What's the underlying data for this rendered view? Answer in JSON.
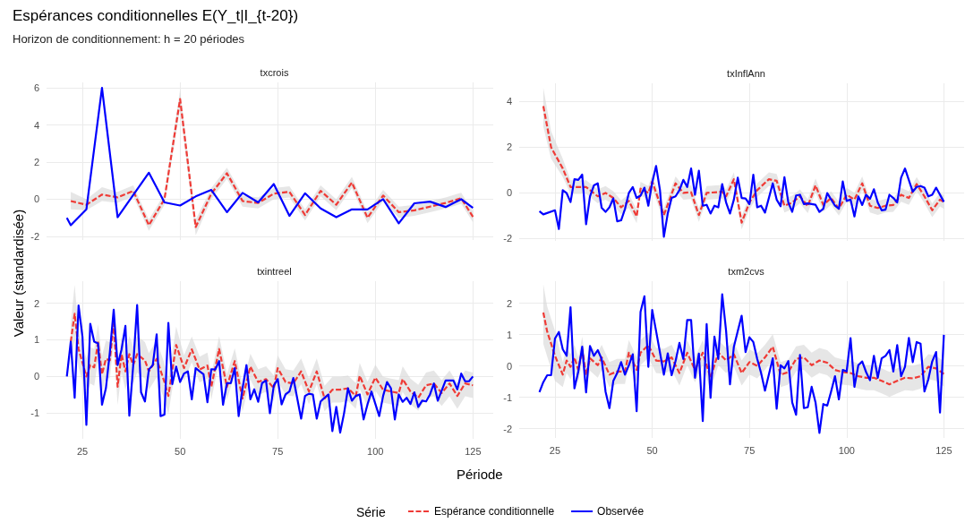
{
  "chart_data": [
    {
      "type": "line",
      "title": "txcrois",
      "annotations": [
        "Espérances conditionnelles E(Y_t|I_{t-20})",
        "Horizon de conditionnement: h = 20 périodes"
      ],
      "xlim": [
        15.8,
        130.2
      ],
      "xticks": [
        25,
        50,
        75,
        100,
        125
      ],
      "ylim": [
        -2.2,
        6.3
      ],
      "yticks": [
        -2,
        0,
        2,
        4,
        6
      ],
      "grid": true,
      "tick_labels": "y",
      "series": [
        {
          "color": "#ef3b36",
          "line_style": "dashed",
          "x": [
            22,
            26,
            30,
            34,
            38,
            42,
            46,
            50,
            54,
            58,
            62,
            66,
            70,
            74,
            78,
            82,
            86,
            90,
            94,
            98,
            102,
            106,
            110,
            114,
            118,
            122,
            125
          ],
          "values": [
            -0.1,
            -0.3,
            0.25,
            0.1,
            0.45,
            -1.4,
            0,
            5.4,
            -1.5,
            0.3,
            1.4,
            -0.1,
            -0.2,
            0.3,
            0.4,
            -0.85,
            0.45,
            -0.3,
            0.9,
            -1,
            0.2,
            -0.7,
            -0.6,
            -0.4,
            -0.2,
            0.05,
            -0.95
          ],
          "lower": [
            -0.55,
            -0.6,
            -0.1,
            -0.2,
            0.15,
            -1.7,
            -0.3,
            4.9,
            -1.95,
            0,
            1.1,
            -0.4,
            -0.5,
            0,
            0.1,
            -1.15,
            0.15,
            -0.6,
            0.6,
            -1.3,
            -0.1,
            -1,
            -0.9,
            -0.7,
            -0.5,
            -0.25,
            -1.25
          ],
          "upper": [
            0.4,
            0,
            0.65,
            0.4,
            0.75,
            -1.1,
            0.3,
            5.9,
            -1.1,
            0.6,
            1.7,
            0.2,
            0.1,
            0.6,
            0.7,
            -0.55,
            0.75,
            0,
            1.2,
            -0.7,
            0.5,
            -0.4,
            -0.3,
            -0.1,
            0.1,
            0.35,
            -0.65
          ]
        },
        {
          "color": "#0000ff",
          "line_style": "solid",
          "x": [
            21,
            22,
            26,
            30,
            34,
            42,
            46,
            50,
            54,
            58,
            62,
            66,
            70,
            74,
            78,
            82,
            86,
            90,
            94,
            98,
            102,
            106,
            110,
            114,
            118,
            122,
            125
          ],
          "values": [
            -1.0,
            -1.4,
            -0.55,
            6.0,
            -0.97,
            1.43,
            -0.17,
            -0.34,
            0.15,
            0.5,
            -0.7,
            0.34,
            -0.17,
            0.82,
            -0.9,
            0.32,
            -0.5,
            -0.97,
            -0.55,
            -0.55,
            0,
            -1.3,
            -0.22,
            -0.13,
            -0.42,
            0,
            -0.47
          ]
        }
      ]
    },
    {
      "type": "line",
      "title": "txInflAnn",
      "xlim": [
        15.8,
        130.2
      ],
      "xticks": [
        25,
        50,
        75,
        100,
        125
      ],
      "ylim": [
        -2.1,
        4.8
      ],
      "yticks": [
        -2,
        0,
        2,
        4
      ],
      "grid": true,
      "tick_labels": "y",
      "series": [
        {
          "color": "#ef3b36",
          "line_style": "dashed",
          "x": [
            22,
            24,
            27,
            29,
            33,
            36,
            38,
            40,
            42,
            44,
            46,
            47,
            49,
            50,
            53,
            56,
            58,
            60,
            62,
            64,
            68,
            69,
            71,
            73,
            75,
            77,
            80,
            82,
            84,
            86,
            88,
            90,
            92,
            94,
            96,
            98,
            100,
            102,
            104,
            106,
            108,
            110,
            112,
            114,
            116,
            118,
            120,
            122,
            124,
            125
          ],
          "values": [
            3.8,
            2.0,
            1.07,
            0.26,
            0.26,
            -0.15,
            0,
            -0.22,
            -0.63,
            -0.35,
            -1.03,
            0.19,
            0,
            0.5,
            -0.97,
            0.42,
            0,
            0.03,
            -0.97,
            0,
            0.05,
            -0.15,
            0.6,
            -1.3,
            -0.42,
            0.12,
            0.6,
            0.53,
            -0.56,
            -0.42,
            -0.15,
            -0.58,
            0.33,
            -0.53,
            -0.22,
            -0.69,
            -0.08,
            -0.29,
            0.42,
            -0.56,
            -0.66,
            -0.56,
            -0.53,
            -0.08,
            -0.22,
            0.39,
            -0.15,
            -0.76,
            -0.29,
            -0.4
          ],
          "lower": [
            2.9,
            1.5,
            0.7,
            -0.04,
            -0.04,
            -0.45,
            -0.3,
            -0.52,
            -0.93,
            -0.65,
            -1.33,
            -0.11,
            -0.3,
            0.2,
            -1.27,
            0.12,
            -0.3,
            -0.27,
            -1.27,
            -0.3,
            -0.25,
            -0.45,
            0.3,
            -1.6,
            -0.72,
            -0.18,
            0.3,
            0.23,
            -0.86,
            -0.72,
            -0.45,
            -0.88,
            0.03,
            -0.83,
            -0.52,
            -0.99,
            -0.38,
            -0.59,
            0.12,
            -0.86,
            -0.96,
            -0.86,
            -0.83,
            -0.38,
            -0.52,
            0.09,
            -0.45,
            -1.06,
            -0.59,
            -0.7
          ],
          "upper": [
            4.6,
            2.7,
            1.5,
            0.56,
            0.56,
            0.15,
            0.3,
            0.08,
            -0.33,
            -0.05,
            -0.73,
            0.49,
            0.3,
            0.8,
            -0.67,
            0.72,
            0.3,
            0.33,
            -0.67,
            0.3,
            0.35,
            0.15,
            0.9,
            -1.0,
            -0.12,
            0.42,
            0.9,
            0.83,
            -0.26,
            -0.12,
            0.15,
            -0.28,
            0.63,
            -0.23,
            0.08,
            -0.39,
            0.22,
            0.01,
            0.72,
            -0.26,
            -0.36,
            -0.26,
            -0.23,
            0.22,
            0.08,
            0.69,
            0.15,
            -0.46,
            0.01,
            -0.1
          ]
        },
        {
          "color": "#0000ff",
          "line_style": "solid",
          "x": [
            21,
            22,
            25,
            26,
            27,
            28,
            29,
            30,
            31,
            32,
            33,
            34,
            35,
            36,
            37,
            38,
            39,
            40,
            41,
            42,
            43,
            44,
            45,
            46,
            47,
            48,
            49,
            50,
            51,
            52,
            53,
            54,
            55,
            56,
            57,
            58,
            59,
            60,
            61,
            62,
            63,
            64,
            65,
            66,
            67,
            68,
            69,
            70,
            71,
            72,
            73,
            74,
            75,
            76,
            77,
            78,
            79,
            81,
            82,
            83,
            84,
            85,
            86,
            87,
            88,
            89,
            90,
            91,
            92,
            93,
            94,
            95,
            97,
            98,
            99,
            100,
            101,
            102,
            103,
            104,
            105,
            106,
            107,
            108,
            109,
            110,
            111,
            112,
            113,
            114,
            115,
            117,
            118,
            119,
            120,
            121,
            122,
            123,
            125
          ],
          "values": [
            -0.8,
            -0.94,
            -0.76,
            -1.58,
            0.12,
            -0.01,
            -0.4,
            0.6,
            0.57,
            0.8,
            -1.37,
            -0.15,
            0.33,
            0.42,
            -0.65,
            -0.83,
            -0.63,
            -0.24,
            -1.24,
            -1.2,
            -0.7,
            0,
            0.26,
            -0.22,
            -0.12,
            0.23,
            -0.56,
            0.46,
            1.18,
            0.12,
            -1.92,
            -0.9,
            -0.22,
            -0.15,
            0.12,
            0.57,
            0.26,
            1.07,
            -0.08,
            0.97,
            -0.56,
            -0.52,
            -0.9,
            -0.56,
            -0.63,
            0.39,
            -0.42,
            -0.9,
            -0.29,
            0.67,
            -0.22,
            -0.24,
            -0.49,
            0.8,
            -0.63,
            -0.56,
            -0.86,
            0.42,
            -0.29,
            -0.58,
            0.69,
            -0.42,
            -0.83,
            -0.11,
            -0.08,
            -0.49,
            -0.46,
            -0.49,
            -0.52,
            -0.83,
            -0.69,
            -0.01,
            -0.56,
            -0.69,
            0.5,
            -0.35,
            -0.29,
            -1.03,
            -0.15,
            -0.53,
            -0.08,
            -0.26,
            0.16,
            -0.42,
            -0.76,
            -0.73,
            -0.08,
            -0.22,
            -0.42,
            0.67,
            1.07,
            0.05,
            0.26,
            0.3,
            0.23,
            -0.15,
            -0.08,
            0.23,
            -0.39
          ]
        }
      ]
    },
    {
      "type": "line",
      "title": "txintreel",
      "ylabel": "Valeur (standardisée)",
      "xlim": [
        15.8,
        130.2
      ],
      "xticks": [
        25,
        50,
        75,
        100,
        125
      ],
      "ylim": [
        -1.7,
        2.6
      ],
      "yticks": [
        -1,
        0,
        1,
        2
      ],
      "grid": true,
      "series": [
        {
          "color": "#ef3b36",
          "line_style": "dashed",
          "x": [
            22,
            23,
            24,
            26,
            27,
            28,
            29,
            30,
            31,
            32,
            33,
            34,
            35,
            36,
            37,
            38,
            39,
            41,
            42,
            44,
            46,
            47,
            49,
            51,
            53,
            55,
            57,
            58,
            60,
            62,
            64,
            66,
            68,
            70,
            72,
            74,
            75,
            77,
            79,
            81,
            83,
            85,
            87,
            89,
            91,
            93,
            95,
            96,
            98,
            100,
            102,
            104,
            106,
            107,
            109,
            111,
            113,
            115,
            117,
            119,
            121,
            123,
            125
          ],
          "values": [
            0.95,
            1.71,
            0.75,
            0,
            0.31,
            0.25,
            0.93,
            0.06,
            0.48,
            0.44,
            1.44,
            -0.28,
            0.61,
            0.14,
            0.61,
            0.31,
            0.61,
            0.44,
            0.14,
            0.48,
            -0.15,
            -0.53,
            0.86,
            0.23,
            0.74,
            0.19,
            0.3,
            -0.28,
            0.75,
            -0.28,
            0.42,
            -0.6,
            0.27,
            -0.15,
            -0.07,
            -0.32,
            0.23,
            -0.15,
            -0.19,
            0.14,
            -0.41,
            0.14,
            -0.6,
            -0.36,
            -0.36,
            -0.32,
            -0.53,
            0.02,
            -0.49,
            -0.03,
            -0.36,
            -0.41,
            -0.45,
            -0.07,
            -0.41,
            -0.58,
            -0.24,
            -0.19,
            -0.45,
            -0.19,
            -0.53,
            -0.19,
            -0.24
          ],
          "lower": [
            0.45,
            1.0,
            0.25,
            -0.5,
            -0.19,
            -0.25,
            0.43,
            -0.44,
            -0.02,
            -0.06,
            0.94,
            -0.78,
            0.11,
            -0.36,
            0.11,
            -0.19,
            0.11,
            -0.06,
            -0.36,
            -0.02,
            -0.65,
            -1.03,
            0.36,
            -0.12,
            0.39,
            -0.16,
            -0.05,
            -0.63,
            0.4,
            -0.63,
            0.07,
            -0.95,
            -0.08,
            -0.5,
            -0.42,
            -0.67,
            -0.12,
            -0.5,
            -0.54,
            -0.21,
            -0.76,
            -0.21,
            -0.95,
            -0.71,
            -0.71,
            -0.67,
            -0.88,
            -0.33,
            -0.84,
            -0.38,
            -0.71,
            -0.76,
            -0.8,
            -0.42,
            -0.76,
            -0.93,
            -0.59,
            -0.54,
            -0.8,
            -0.54,
            -0.88,
            -0.54,
            -0.59
          ],
          "upper": [
            1.45,
            2.5,
            1.25,
            0.5,
            0.81,
            0.75,
            1.43,
            0.56,
            0.98,
            0.94,
            1.94,
            0.22,
            1.11,
            0.64,
            1.11,
            0.81,
            1.11,
            0.94,
            0.64,
            0.98,
            0.35,
            -0.03,
            1.36,
            0.58,
            1.09,
            0.54,
            0.65,
            0.07,
            1.1,
            0.07,
            0.77,
            -0.25,
            0.62,
            0.2,
            0.28,
            0.03,
            0.58,
            0.2,
            0.16,
            0.49,
            -0.06,
            0.49,
            -0.25,
            -0.01,
            -0.01,
            0.03,
            -0.18,
            0.37,
            -0.14,
            0.32,
            -0.01,
            -0.06,
            -0.1,
            0.28,
            -0.06,
            -0.23,
            0.11,
            0.16,
            -0.1,
            0.16,
            -0.18,
            0.16,
            0.11
          ]
        },
        {
          "color": "#0000ff",
          "line_style": "solid",
          "x": [
            21,
            22,
            23,
            24,
            25,
            26,
            27,
            28,
            29,
            30,
            31,
            32,
            33,
            34,
            35,
            36,
            37,
            38,
            39,
            40,
            41,
            42,
            43,
            44,
            45,
            46,
            47,
            48,
            49,
            50,
            51,
            52,
            53,
            54,
            55,
            56,
            57,
            58,
            59,
            60,
            61,
            62,
            63,
            64,
            65,
            66,
            67,
            68,
            69,
            70,
            71,
            72,
            73,
            74,
            75,
            76,
            77,
            78,
            79,
            81,
            82,
            83,
            84,
            85,
            86,
            87,
            88,
            89,
            90,
            91,
            92,
            93,
            94,
            95,
            96,
            97,
            98,
            99,
            101,
            102,
            103,
            104,
            105,
            106,
            107,
            108,
            109,
            110,
            111,
            112,
            113,
            114,
            115,
            116,
            118,
            120,
            121,
            122,
            123,
            124,
            125
          ],
          "values": [
            0,
            0.95,
            -0.58,
            1.94,
            1.08,
            -1.32,
            1.44,
            0.95,
            0.9,
            -0.77,
            -0.32,
            0.65,
            1.82,
            0.31,
            0.73,
            1.38,
            -1.07,
            0.31,
            1.95,
            -0.43,
            -0.68,
            0.19,
            0.31,
            1.15,
            -1.08,
            -1.04,
            1.46,
            -0.21,
            0.27,
            -0.15,
            0.08,
            0.14,
            -0.62,
            0.23,
            0.14,
            0.06,
            -0.7,
            0.2,
            0.19,
            0.42,
            -0.77,
            -0.18,
            -0.18,
            0.23,
            -1.08,
            -0.32,
            0.31,
            -0.62,
            -0.35,
            -0.69,
            -0.18,
            -0.11,
            -1.0,
            -0.25,
            -0.07,
            -0.76,
            -0.49,
            -0.41,
            -0.04,
            -1.15,
            -0.53,
            -0.47,
            -0.49,
            -1.15,
            -0.68,
            -0.58,
            -0.49,
            -1.49,
            -0.83,
            -1.53,
            -1.0,
            -0.32,
            -0.66,
            -0.53,
            -0.49,
            -1.17,
            -0.76,
            -0.41,
            -1.08,
            -0.53,
            -0.15,
            -0.32,
            -1.17,
            -0.49,
            -0.69,
            -0.58,
            -0.75,
            -0.43,
            -0.83,
            -0.66,
            -0.68,
            -0.49,
            -0.19,
            -0.66,
            -0.11,
            -0.11,
            -0.35,
            0.08,
            -0.13,
            -0.13,
            0
          ]
        }
      ]
    },
    {
      "type": "line",
      "title": "txm2cvs",
      "xlabel": "Période",
      "legend": "bottom",
      "legend_title": "Série",
      "xlim": [
        15.8,
        130.2
      ],
      "xticks": [
        25,
        50,
        75,
        100,
        125
      ],
      "ylim": [
        -2.3,
        2.7
      ],
      "yticks": [
        -2,
        -1,
        0,
        1,
        2
      ],
      "grid": true,
      "series": [
        {
          "name": "Espérance conditionnelle",
          "color": "#ef3b36",
          "line_style": "dashed",
          "x": [
            22,
            23,
            24,
            25,
            27,
            28,
            29,
            30,
            31,
            32,
            33,
            34,
            36,
            37,
            39,
            41,
            43,
            44,
            46,
            47,
            49,
            51,
            53,
            55,
            57,
            59,
            61,
            63,
            65,
            67,
            69,
            71,
            73,
            75,
            77,
            79,
            81,
            83,
            85,
            87,
            89,
            91,
            93,
            95,
            97,
            99,
            101,
            103,
            105,
            107,
            109,
            111,
            113,
            115,
            117,
            119,
            121,
            123,
            125
          ],
          "values": [
            1.7,
            1.09,
            0.71,
            0.32,
            -0.28,
            0.17,
            -0.03,
            0.27,
            -0.13,
            0.53,
            -0.3,
            0.24,
            0.02,
            0.27,
            -0.28,
            -0.18,
            -0.18,
            0.42,
            -0.13,
            0.42,
            0.66,
            0.17,
            0.14,
            0.27,
            -0.23,
            0.42,
            -0.13,
            0.42,
            -0.38,
            0.42,
            0.17,
            0.37,
            -0.23,
            0.12,
            0,
            0.27,
            0.61,
            -0.28,
            -0.2,
            0.22,
            0.27,
            0.02,
            0.17,
            0.1,
            -0.13,
            -0.2,
            -0.23,
            -0.33,
            -0.38,
            -0.38,
            -0.48,
            -0.59,
            -0.48,
            -0.38,
            -0.4,
            -0.33,
            -0.03,
            -0.08,
            -0.26
          ],
          "lower": [
            0.7,
            0.29,
            -0.09,
            -0.48,
            -0.68,
            -0.23,
            -0.43,
            -0.13,
            -0.53,
            0.13,
            -0.7,
            -0.16,
            -0.38,
            -0.13,
            -0.68,
            -0.58,
            -0.58,
            0.02,
            -0.53,
            0.02,
            0.26,
            -0.23,
            -0.26,
            -0.13,
            -0.63,
            0.02,
            -0.53,
            0.02,
            -0.78,
            0.02,
            -0.23,
            -0.03,
            -0.63,
            -0.28,
            -0.4,
            -0.13,
            0.21,
            -0.68,
            -0.6,
            -0.18,
            -0.13,
            -0.38,
            -0.23,
            -0.3,
            -0.53,
            -0.6,
            -0.63,
            -0.73,
            -0.78,
            -0.78,
            -0.88,
            -0.99,
            -0.88,
            -0.78,
            -0.8,
            -0.73,
            -0.43,
            -0.48,
            -0.66
          ],
          "upper": [
            2.6,
            1.89,
            1.51,
            1.12,
            0.12,
            0.57,
            0.37,
            0.67,
            0.27,
            0.93,
            0.1,
            0.64,
            0.42,
            0.67,
            0.12,
            0.22,
            0.22,
            0.82,
            0.27,
            0.82,
            1.06,
            0.57,
            0.54,
            0.67,
            0.17,
            0.82,
            0.27,
            0.82,
            0.02,
            0.82,
            0.57,
            0.77,
            0.17,
            0.52,
            0.4,
            0.67,
            1.01,
            0.12,
            0.2,
            0.62,
            0.67,
            0.42,
            0.57,
            0.5,
            0.27,
            0.2,
            0.17,
            0.07,
            0.02,
            0.02,
            -0.08,
            -0.19,
            -0.08,
            0.02,
            0,
            0.07,
            0.37,
            0.32,
            0.14
          ]
        },
        {
          "name": "Observée",
          "color": "#0000ff",
          "line_style": "solid",
          "x": [
            21,
            22,
            23,
            24,
            25,
            26,
            27,
            28,
            29,
            30,
            31,
            32,
            33,
            34,
            35,
            36,
            37,
            38,
            39,
            40,
            41,
            42,
            43,
            44,
            45,
            46,
            47,
            48,
            49,
            50,
            51,
            52,
            53,
            54,
            55,
            56,
            57,
            58,
            59,
            60,
            61,
            62,
            63,
            64,
            65,
            66,
            67,
            68,
            69,
            70,
            71,
            72,
            73,
            74,
            75,
            76,
            77,
            78,
            79,
            81,
            82,
            83,
            84,
            85,
            86,
            87,
            88,
            89,
            90,
            91,
            92,
            93,
            94,
            95,
            96,
            97,
            98,
            99,
            100,
            101,
            102,
            103,
            104,
            105,
            106,
            107,
            108,
            109,
            110,
            111,
            112,
            113,
            114,
            115,
            116,
            117,
            118,
            119,
            120,
            121,
            122,
            123,
            124,
            125
          ],
          "values": [
            -0.84,
            -0.52,
            -0.3,
            -0.3,
            0.87,
            1.08,
            0.53,
            0.32,
            1.87,
            -0.72,
            -0.18,
            0.61,
            -0.85,
            0.63,
            0.32,
            0.5,
            0.22,
            -0.82,
            -1.35,
            -0.48,
            -0.23,
            0.12,
            -0.28,
            0.02,
            0.37,
            -1.45,
            1.72,
            2.22,
            -0.03,
            1.78,
            1.11,
            0.42,
            -0.28,
            0.4,
            -0.3,
            0.15,
            0.73,
            0.22,
            1.46,
            1.46,
            -0.38,
            0.39,
            -1.76,
            1.33,
            -1.02,
            0.93,
            0.22,
            2.28,
            1.11,
            -0.59,
            0.61,
            1.11,
            1.6,
            0.44,
            0.91,
            0.76,
            0.22,
            -0.23,
            -0.79,
            0.24,
            -1.37,
            0.02,
            -0.08,
            0.15,
            -1.17,
            -1.56,
            0.35,
            -1.35,
            -1.32,
            -0.67,
            -1.17,
            -2.14,
            -1.22,
            -1.27,
            -0.82,
            -0.33,
            -1.07,
            -0.13,
            -0.18,
            0.88,
            -0.67,
            0.02,
            0.14,
            -0.2,
            -0.46,
            0.32,
            -0.38,
            0.24,
            0.32,
            0.5,
            -0.18,
            0.66,
            -0.33,
            -0.03,
            0.89,
            0.12,
            0.76,
            0.71,
            -0.82,
            -0.43,
            0.14,
            0.44,
            -1.49,
            0.99
          ]
        }
      ]
    }
  ]
}
